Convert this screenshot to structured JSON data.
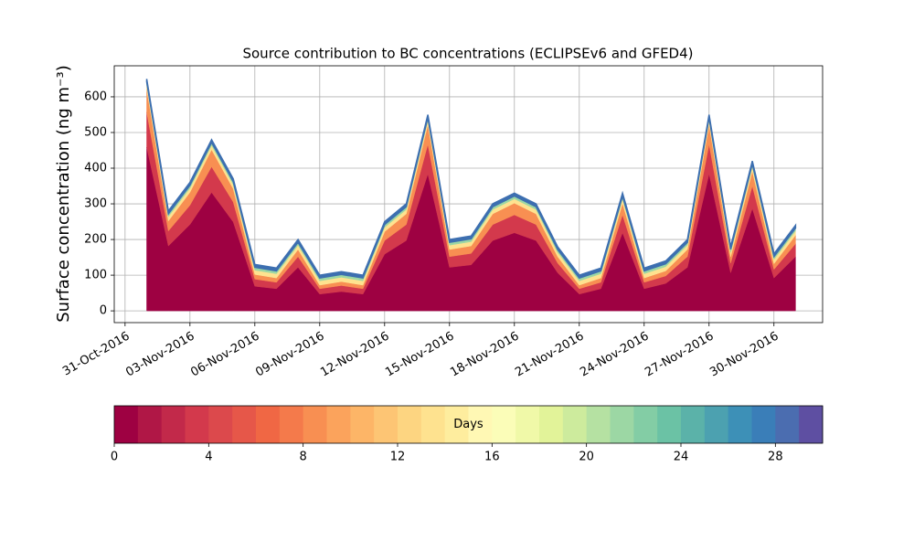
{
  "chart_data": {
    "type": "stacked_area",
    "title": "Source contribution to BC concentrations (ECLIPSEv6 and GFED4)",
    "y_label": "Surface concentration (ng m⁻³)",
    "x": [
      "2016-11-01",
      "2016-11-02",
      "2016-11-03",
      "2016-11-04",
      "2016-11-05",
      "2016-11-06",
      "2016-11-07",
      "2016-11-08",
      "2016-11-09",
      "2016-11-10",
      "2016-11-11",
      "2016-11-12",
      "2016-11-13",
      "2016-11-14",
      "2016-11-15",
      "2016-11-16",
      "2016-11-17",
      "2016-11-18",
      "2016-11-19",
      "2016-11-20",
      "2016-11-21",
      "2016-11-22",
      "2016-11-23",
      "2016-11-24",
      "2016-11-25",
      "2016-11-26",
      "2016-11-27",
      "2016-11-28",
      "2016-11-29",
      "2016-11-30",
      "2016-12-01"
    ],
    "series": [
      {
        "color": "#9e0142",
        "values": [
          459,
          182,
          242,
          332,
          249,
          69,
          62,
          122,
          47,
          54,
          47,
          159,
          197,
          384,
          122,
          129,
          197,
          219,
          197,
          107,
          47,
          62,
          219,
          62,
          77,
          122,
          384,
          107,
          287,
          92,
          152
        ]
      },
      {
        "color": "#d3394c",
        "values": [
          98,
          42,
          54,
          72,
          56,
          20,
          18,
          30,
          15,
          17,
          15,
          38,
          45,
          83,
          30,
          32,
          45,
          50,
          45,
          27,
          15,
          18,
          50,
          18,
          21,
          30,
          83,
          27,
          63,
          24,
          36
        ]
      },
      {
        "color": "#f88f52",
        "values": [
          65,
          28,
          36,
          48,
          37,
          13,
          12,
          20,
          10,
          11,
          10,
          25,
          30,
          55,
          20,
          21,
          30,
          33,
          30,
          18,
          10,
          12,
          33,
          12,
          14,
          20,
          55,
          18,
          42,
          16,
          24
        ]
      },
      {
        "color": "#fee28f",
        "values": [
          12,
          12,
          12,
          12,
          12,
          12,
          12,
          12,
          12,
          12,
          12,
          12,
          12,
          12,
          12,
          12,
          12,
          12,
          12,
          12,
          12,
          12,
          12,
          12,
          12,
          12,
          12,
          12,
          12,
          12,
          12
        ]
      },
      {
        "color": "#9cd7a4",
        "values": [
          8,
          8,
          8,
          8,
          8,
          8,
          8,
          8,
          8,
          8,
          8,
          8,
          8,
          8,
          8,
          8,
          8,
          8,
          8,
          8,
          8,
          8,
          8,
          8,
          8,
          8,
          8,
          8,
          8,
          8,
          8
        ]
      },
      {
        "color": "#3d6fb0",
        "values": [
          8,
          8,
          8,
          8,
          8,
          8,
          8,
          8,
          8,
          8,
          8,
          8,
          8,
          8,
          8,
          8,
          8,
          8,
          8,
          8,
          8,
          8,
          8,
          8,
          8,
          8,
          8,
          8,
          8,
          8,
          8
        ]
      }
    ],
    "xlim": [
      "2016-10-30T12:00",
      "2016-12-02T06:00"
    ],
    "xticks": [
      {
        "value": "2016-10-31",
        "label": "31-Oct-2016"
      },
      {
        "value": "2016-11-03",
        "label": "03-Nov-2016"
      },
      {
        "value": "2016-11-06",
        "label": "06-Nov-2016"
      },
      {
        "value": "2016-11-09",
        "label": "09-Nov-2016"
      },
      {
        "value": "2016-11-12",
        "label": "12-Nov-2016"
      },
      {
        "value": "2016-11-15",
        "label": "15-Nov-2016"
      },
      {
        "value": "2016-11-18",
        "label": "18-Nov-2016"
      },
      {
        "value": "2016-11-21",
        "label": "21-Nov-2016"
      },
      {
        "value": "2016-11-24",
        "label": "24-Nov-2016"
      },
      {
        "value": "2016-11-27",
        "label": "27-Nov-2016"
      },
      {
        "value": "2016-11-30",
        "label": "30-Nov-2016"
      }
    ],
    "ylim": [
      -33,
      687
    ],
    "yticks": [
      0,
      100,
      200,
      300,
      400,
      500,
      600
    ],
    "grid": true,
    "colorbar": {
      "label": "Days",
      "lim": [
        0,
        30
      ],
      "ticks": [
        0,
        4,
        8,
        12,
        16,
        20,
        24,
        28
      ],
      "colors": [
        "#9e0142",
        "#b01746",
        "#c2294a",
        "#d3394c",
        "#dc494c",
        "#e65749",
        "#f06744",
        "#f47a4b",
        "#f88f52",
        "#fba35c",
        "#fdb567",
        "#fdc574",
        "#fdd581",
        "#fee28f",
        "#feed9e",
        "#fff8b4",
        "#fbfdb8",
        "#f0f9a8",
        "#e2f399",
        "#cdeb9d",
        "#b5e1a2",
        "#9cd7a4",
        "#83cda5",
        "#6bc2a5",
        "#5bb2a9",
        "#4ca1b0",
        "#3d90b7",
        "#3a7eb8",
        "#4b6db0",
        "#5e4fa2"
      ]
    }
  }
}
